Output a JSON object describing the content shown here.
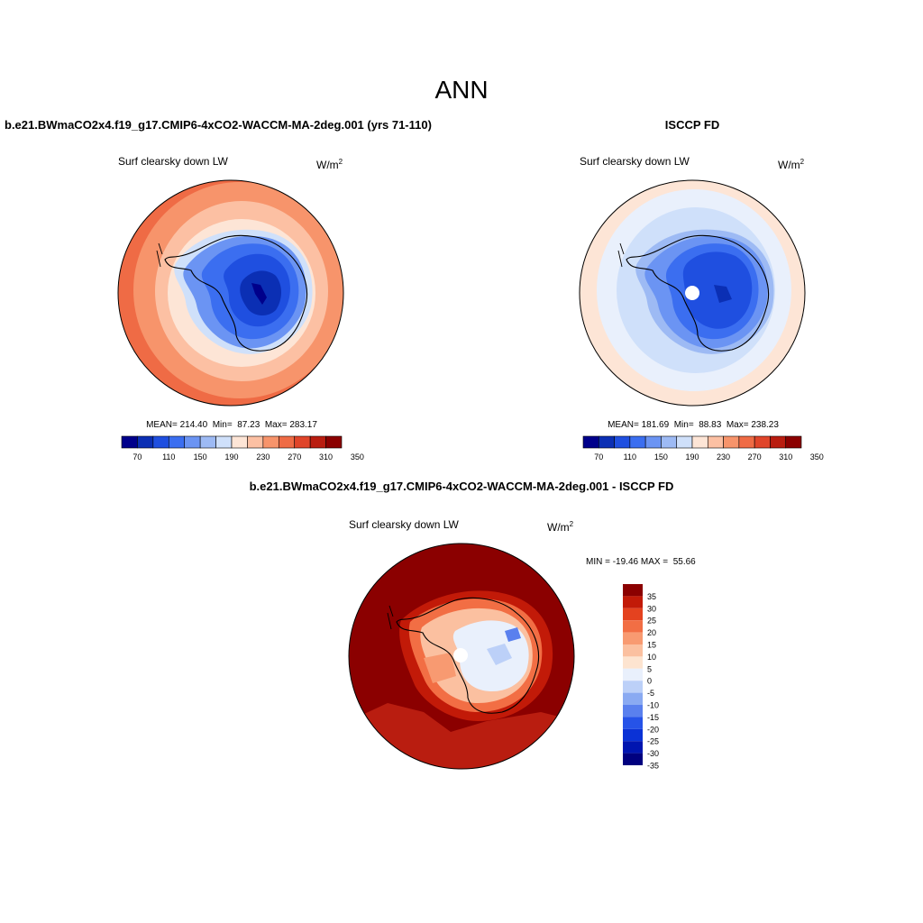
{
  "page": {
    "title": "ANN"
  },
  "palette": {
    "blue_red_12": [
      "#00008b",
      "#0b2fb4",
      "#1f4fe0",
      "#3b6ef0",
      "#6b94f3",
      "#9dbaf4",
      "#cfe0fa",
      "#fde5d6",
      "#fcc0a3",
      "#f7946b",
      "#ef6b45",
      "#e0452a",
      "#b91d10",
      "#8b0000"
    ],
    "diff_colors": [
      "#00007f",
      "#0015b0",
      "#0a32d6",
      "#2653e8",
      "#5a80ee",
      "#8aaaf2",
      "#bcd0f8",
      "#e9f0fc",
      "#fde4d0",
      "#fbc0a0",
      "#f89a71",
      "#f26e44",
      "#e4421f",
      "#c21a08",
      "#8b0000"
    ]
  },
  "panel1": {
    "heading": "b.e21.BWmaCO2x4.f19_g17.CMIP6-4xCO2-WACCM-MA-2deg.001 (yrs 71-110)",
    "var_label": "Surf clearsky down LW",
    "units": "W/m",
    "units_sup": "2",
    "stats": "MEAN= 214.40  Min=  87.23  Max= 283.17"
  },
  "panel2": {
    "heading": "ISCCP FD",
    "var_label": "Surf clearsky down LW",
    "units": "W/m",
    "units_sup": "2",
    "stats": "MEAN= 181.69  Min=  88.83  Max= 238.23"
  },
  "panel3": {
    "heading": "b.e21.BWmaCO2x4.f19_g17.CMIP6-4xCO2-WACCM-MA-2deg.001 - ISCCP FD",
    "var_label": "Surf clearsky down LW",
    "units": "W/m",
    "units_sup": "2",
    "stats": "MIN = -19.46 MAX =  55.66"
  },
  "chart_data": [
    {
      "type": "heatmap",
      "title": "Surf clearsky down LW",
      "projection": "south polar stereographic",
      "units": "W/m2",
      "colorbar_levels": [
        70,
        90,
        110,
        130,
        150,
        170,
        190,
        210,
        230,
        250,
        270,
        290,
        310,
        330,
        350
      ],
      "colorbar_tick_labels": [
        "70",
        "110",
        "150",
        "190",
        "230",
        "270",
        "310",
        "350"
      ],
      "mean": 214.4,
      "min": 87.23,
      "max": 283.17
    },
    {
      "type": "heatmap",
      "title": "Surf clearsky down LW",
      "projection": "south polar stereographic",
      "units": "W/m2",
      "colorbar_levels": [
        70,
        90,
        110,
        130,
        150,
        170,
        190,
        210,
        230,
        250,
        270,
        290,
        310,
        330,
        350
      ],
      "colorbar_tick_labels": [
        "70",
        "110",
        "150",
        "190",
        "230",
        "270",
        "310",
        "350"
      ],
      "mean": 181.69,
      "min": 88.83,
      "max": 238.23
    },
    {
      "type": "heatmap",
      "title": "Surf clearsky down LW",
      "projection": "south polar stereographic",
      "units": "W/m2",
      "colorbar_levels": [
        -35,
        -30,
        -25,
        -20,
        -15,
        -10,
        -5,
        0,
        5,
        10,
        15,
        20,
        25,
        30,
        35
      ],
      "colorbar_tick_labels": [
        "35",
        "30",
        "25",
        "20",
        "15",
        "10",
        "5",
        "0",
        "-5",
        "-10",
        "-15",
        "-20",
        "-25",
        "-30",
        "-35"
      ],
      "min": -19.46,
      "max": 55.66
    }
  ]
}
